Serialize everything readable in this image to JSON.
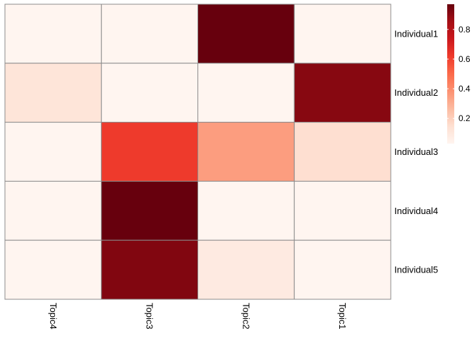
{
  "chart_data": {
    "type": "heatmap",
    "rows": [
      "Individual1",
      "Individual2",
      "Individual3",
      "Individual4",
      "Individual5"
    ],
    "columns": [
      "Topic4",
      "Topic3",
      "Topic2",
      "Topic1"
    ],
    "values": [
      [
        0.03,
        0.03,
        0.97,
        0.03
      ],
      [
        0.12,
        0.03,
        0.03,
        0.91
      ],
      [
        0.03,
        0.62,
        0.35,
        0.15
      ],
      [
        0.03,
        0.97,
        0.03,
        0.03
      ],
      [
        0.03,
        0.92,
        0.09,
        0.03
      ]
    ],
    "title": "",
    "xlabel": "",
    "ylabel": "",
    "colorbar": {
      "ticks": [
        0.2,
        0.4,
        0.6,
        0.8
      ],
      "tick_labels": [
        "0.2",
        "0.4",
        "0.6",
        "0.8"
      ],
      "range": [
        0.03,
        0.97
      ],
      "palette": [
        "#FFF5F0",
        "#FEE0D2",
        "#FCBBA1",
        "#FC9272",
        "#FB6A4A",
        "#EF3B2C",
        "#CB181D",
        "#A50F15",
        "#67000D"
      ]
    },
    "grid": true,
    "legend_position": "right"
  },
  "colors": {
    "cell_border": "#8C8C8C",
    "background": "#FFFFFF"
  }
}
